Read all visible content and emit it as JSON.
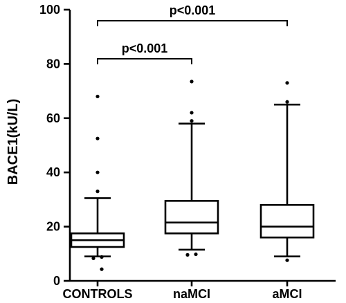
{
  "chart_data": {
    "type": "box",
    "ylabel": "BACE1(kU/L)",
    "ylim": [
      0,
      100
    ],
    "yticks": [
      "0",
      "20",
      "40",
      "60",
      "80",
      "100"
    ],
    "categories": [
      "CONTROLS",
      "naMCI",
      "aMCI"
    ],
    "boxes": [
      {
        "category": "CONTROLS",
        "whisker_low": 9,
        "q1": 12.5,
        "median": 15,
        "q3": 17.5,
        "whisker_high": 30.5,
        "outliers": [
          4.3,
          8.3,
          8.8,
          33,
          40,
          52.5,
          68
        ]
      },
      {
        "category": "naMCI",
        "whisker_low": 11.5,
        "q1": 17.5,
        "median": 21.5,
        "q3": 29.5,
        "whisker_high": 58,
        "outliers": [
          9.6,
          9.8,
          59,
          62,
          73.5
        ]
      },
      {
        "category": "aMCI",
        "whisker_low": 9,
        "q1": 16,
        "median": 20,
        "q3": 28,
        "whisker_high": 65,
        "outliers": [
          7.6,
          66,
          73
        ]
      }
    ],
    "annotations": [
      {
        "text": "p<0.001",
        "from": "CONTROLS",
        "to": "aMCI"
      },
      {
        "text": "p<0.001",
        "from": "CONTROLS",
        "to": "naMCI"
      }
    ]
  }
}
